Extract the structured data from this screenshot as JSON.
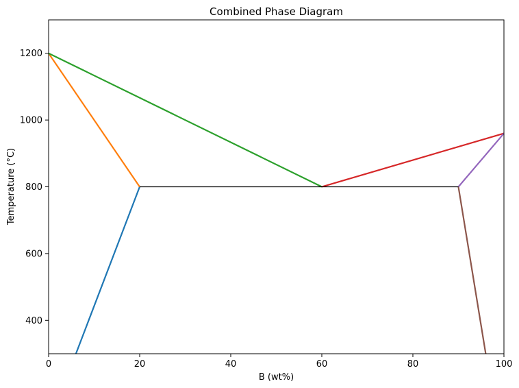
{
  "chart_data": {
    "type": "line",
    "title": "Combined Phase Diagram",
    "xlabel": "B (wt%)",
    "ylabel": "Temperature (°C)",
    "xlim": [
      0,
      100
    ],
    "ylim": [
      300,
      1300
    ],
    "xticks": [
      0,
      20,
      40,
      60,
      80,
      100
    ],
    "yticks": [
      400,
      600,
      800,
      1000,
      1200
    ],
    "grid": false,
    "legend": "none",
    "series": [
      {
        "color": "#1f77b4",
        "x": [
          6,
          20
        ],
        "y": [
          300,
          800
        ]
      },
      {
        "color": "#ff7f0e",
        "x": [
          0,
          20
        ],
        "y": [
          1200,
          800
        ]
      },
      {
        "color": "#2ca02c",
        "x": [
          0,
          60
        ],
        "y": [
          1200,
          800
        ]
      },
      {
        "color": "#d62728",
        "x": [
          60,
          100
        ],
        "y": [
          800,
          960
        ]
      },
      {
        "color": "#9467bd",
        "x": [
          90,
          100
        ],
        "y": [
          800,
          960
        ]
      },
      {
        "color": "#8c564b",
        "x": [
          90,
          96
        ],
        "y": [
          800,
          300
        ]
      },
      {
        "color": "#000000",
        "x": [
          20,
          90
        ],
        "y": [
          800,
          800
        ]
      }
    ]
  }
}
